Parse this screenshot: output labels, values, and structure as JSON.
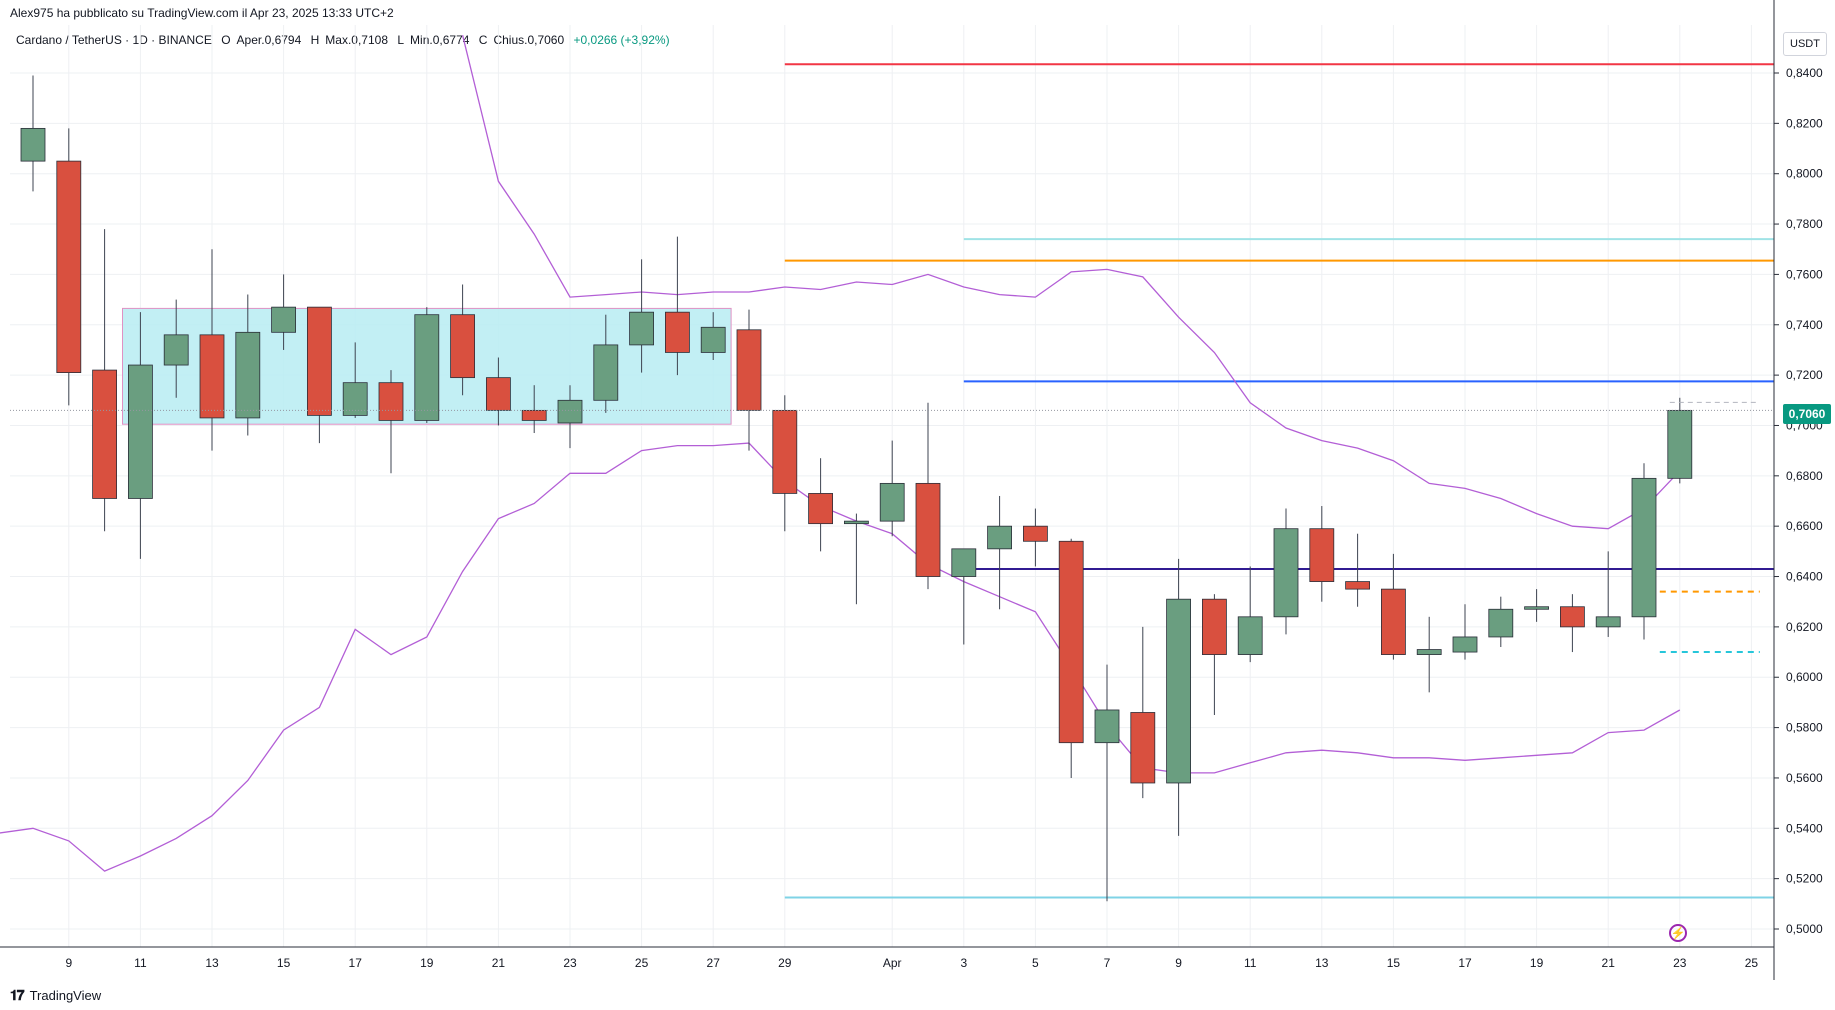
{
  "header": {
    "published_by": "Alex975 ha pubblicato su TradingView.com il Apr 23, 2025 13:33 UTC+2"
  },
  "legend": {
    "symbol": "Cardano / TetherUS · 1D · BINANCE",
    "open_label": "O",
    "open_text": "Aper.0,6794",
    "high_label": "H",
    "high_text": "Max.0,7108",
    "low_label": "L",
    "low_text": "Min.0,6774",
    "close_label": "C",
    "close_text": "Chius.0,7060",
    "change_text": "+0,0266 (+3,92%)"
  },
  "price_axis": {
    "currency": "USDT",
    "current_price_label": "0,7060"
  },
  "footer": {
    "brand": "TradingView"
  },
  "colors": {
    "up": "#6a9e80",
    "down": "#d9503f",
    "bollinger": "#b35fd6",
    "range_box": "#b7ecf2",
    "range_box_border": "#e091c4"
  },
  "chart_data": {
    "type": "candlestick",
    "ylim": [
      0.49,
      0.855
    ],
    "y_ticks": [
      "0,8400",
      "0,8200",
      "0,8000",
      "0,7800",
      "0,7600",
      "0,7400",
      "0,7200",
      "0,7000",
      "0,6800",
      "0,6600",
      "0,6400",
      "0,6200",
      "0,6000",
      "0,5800",
      "0,5600",
      "0,5400",
      "0,5200",
      "0,5000"
    ],
    "y_tick_values": [
      0.84,
      0.82,
      0.8,
      0.78,
      0.76,
      0.74,
      0.72,
      0.7,
      0.68,
      0.66,
      0.64,
      0.62,
      0.6,
      0.58,
      0.56,
      0.54,
      0.52,
      0.5
    ],
    "x_ticks": [
      "9",
      "11",
      "13",
      "15",
      "17",
      "19",
      "21",
      "23",
      "25",
      "27",
      "29",
      "Apr",
      "3",
      "5",
      "7",
      "9",
      "11",
      "13",
      "15",
      "17",
      "19",
      "21",
      "23",
      "25"
    ],
    "x_tick_days": [
      1,
      3,
      5,
      7,
      9,
      11,
      13,
      15,
      17,
      19,
      21,
      24,
      26,
      28,
      30,
      32,
      34,
      36,
      38,
      40,
      42,
      44,
      46,
      48
    ],
    "grid": true,
    "candles": [
      {
        "d": 0,
        "o": 0.805,
        "h": 0.839,
        "l": 0.793,
        "c": 0.818
      },
      {
        "d": 1,
        "o": 0.805,
        "h": 0.818,
        "l": 0.708,
        "c": 0.721
      },
      {
        "d": 2,
        "o": 0.722,
        "h": 0.778,
        "l": 0.658,
        "c": 0.671
      },
      {
        "d": 3,
        "o": 0.671,
        "h": 0.745,
        "l": 0.647,
        "c": 0.724
      },
      {
        "d": 4,
        "o": 0.724,
        "h": 0.75,
        "l": 0.711,
        "c": 0.736
      },
      {
        "d": 5,
        "o": 0.736,
        "h": 0.77,
        "l": 0.69,
        "c": 0.703
      },
      {
        "d": 6,
        "o": 0.703,
        "h": 0.752,
        "l": 0.696,
        "c": 0.737
      },
      {
        "d": 7,
        "o": 0.737,
        "h": 0.76,
        "l": 0.73,
        "c": 0.747
      },
      {
        "d": 8,
        "o": 0.747,
        "h": 0.747,
        "l": 0.693,
        "c": 0.704
      },
      {
        "d": 9,
        "o": 0.704,
        "h": 0.733,
        "l": 0.703,
        "c": 0.717
      },
      {
        "d": 10,
        "o": 0.717,
        "h": 0.722,
        "l": 0.681,
        "c": 0.702
      },
      {
        "d": 11,
        "o": 0.702,
        "h": 0.747,
        "l": 0.701,
        "c": 0.744
      },
      {
        "d": 12,
        "o": 0.744,
        "h": 0.756,
        "l": 0.712,
        "c": 0.719
      },
      {
        "d": 13,
        "o": 0.719,
        "h": 0.727,
        "l": 0.7,
        "c": 0.706
      },
      {
        "d": 14,
        "o": 0.706,
        "h": 0.716,
        "l": 0.697,
        "c": 0.702
      },
      {
        "d": 15,
        "o": 0.701,
        "h": 0.716,
        "l": 0.691,
        "c": 0.71
      },
      {
        "d": 16,
        "o": 0.71,
        "h": 0.744,
        "l": 0.705,
        "c": 0.732
      },
      {
        "d": 17,
        "o": 0.732,
        "h": 0.766,
        "l": 0.721,
        "c": 0.745
      },
      {
        "d": 18,
        "o": 0.745,
        "h": 0.775,
        "l": 0.72,
        "c": 0.729
      },
      {
        "d": 19,
        "o": 0.729,
        "h": 0.745,
        "l": 0.726,
        "c": 0.739
      },
      {
        "d": 20,
        "o": 0.738,
        "h": 0.746,
        "l": 0.69,
        "c": 0.706
      },
      {
        "d": 21,
        "o": 0.706,
        "h": 0.712,
        "l": 0.658,
        "c": 0.673
      },
      {
        "d": 22,
        "o": 0.673,
        "h": 0.687,
        "l": 0.65,
        "c": 0.661
      },
      {
        "d": 23,
        "o": 0.661,
        "h": 0.665,
        "l": 0.629,
        "c": 0.662
      },
      {
        "d": 24,
        "o": 0.662,
        "h": 0.694,
        "l": 0.656,
        "c": 0.677
      },
      {
        "d": 25,
        "o": 0.677,
        "h": 0.709,
        "l": 0.635,
        "c": 0.64
      },
      {
        "d": 26,
        "o": 0.64,
        "h": 0.648,
        "l": 0.613,
        "c": 0.651
      },
      {
        "d": 27,
        "o": 0.651,
        "h": 0.672,
        "l": 0.627,
        "c": 0.66
      },
      {
        "d": 28,
        "o": 0.66,
        "h": 0.667,
        "l": 0.644,
        "c": 0.654
      },
      {
        "d": 29,
        "o": 0.654,
        "h": 0.655,
        "l": 0.56,
        "c": 0.574
      },
      {
        "d": 30,
        "o": 0.574,
        "h": 0.605,
        "l": 0.511,
        "c": 0.587
      },
      {
        "d": 31,
        "o": 0.586,
        "h": 0.62,
        "l": 0.552,
        "c": 0.558
      },
      {
        "d": 32,
        "o": 0.558,
        "h": 0.647,
        "l": 0.537,
        "c": 0.631
      },
      {
        "d": 33,
        "o": 0.631,
        "h": 0.633,
        "l": 0.585,
        "c": 0.609
      },
      {
        "d": 34,
        "o": 0.609,
        "h": 0.644,
        "l": 0.606,
        "c": 0.624
      },
      {
        "d": 35,
        "o": 0.624,
        "h": 0.667,
        "l": 0.617,
        "c": 0.659
      },
      {
        "d": 36,
        "o": 0.659,
        "h": 0.668,
        "l": 0.63,
        "c": 0.638
      },
      {
        "d": 37,
        "o": 0.638,
        "h": 0.657,
        "l": 0.628,
        "c": 0.635
      },
      {
        "d": 38,
        "o": 0.635,
        "h": 0.649,
        "l": 0.607,
        "c": 0.609
      },
      {
        "d": 39,
        "o": 0.609,
        "h": 0.624,
        "l": 0.594,
        "c": 0.611
      },
      {
        "d": 40,
        "o": 0.61,
        "h": 0.629,
        "l": 0.607,
        "c": 0.616
      },
      {
        "d": 41,
        "o": 0.616,
        "h": 0.632,
        "l": 0.612,
        "c": 0.627
      },
      {
        "d": 42,
        "o": 0.627,
        "h": 0.635,
        "l": 0.622,
        "c": 0.628
      },
      {
        "d": 43,
        "o": 0.628,
        "h": 0.633,
        "l": 0.61,
        "c": 0.62
      },
      {
        "d": 44,
        "o": 0.62,
        "h": 0.65,
        "l": 0.616,
        "c": 0.624
      },
      {
        "d": 45,
        "o": 0.624,
        "h": 0.685,
        "l": 0.615,
        "c": 0.679
      },
      {
        "d": 46,
        "o": 0.679,
        "h": 0.711,
        "l": 0.677,
        "c": 0.706
      }
    ],
    "bollinger_upper": [
      {
        "d": 12,
        "y": 0.855
      },
      {
        "d": 13,
        "y": 0.797
      },
      {
        "d": 14,
        "y": 0.776
      },
      {
        "d": 15,
        "y": 0.751
      },
      {
        "d": 16,
        "y": 0.752
      },
      {
        "d": 17,
        "y": 0.753
      },
      {
        "d": 18,
        "y": 0.752
      },
      {
        "d": 19,
        "y": 0.753
      },
      {
        "d": 20,
        "y": 0.753
      },
      {
        "d": 21,
        "y": 0.755
      },
      {
        "d": 22,
        "y": 0.754
      },
      {
        "d": 23,
        "y": 0.757
      },
      {
        "d": 24,
        "y": 0.756
      },
      {
        "d": 25,
        "y": 0.76
      },
      {
        "d": 26,
        "y": 0.755
      },
      {
        "d": 27,
        "y": 0.752
      },
      {
        "d": 28,
        "y": 0.751
      },
      {
        "d": 29,
        "y": 0.761
      },
      {
        "d": 30,
        "y": 0.762
      },
      {
        "d": 31,
        "y": 0.759
      },
      {
        "d": 32,
        "y": 0.743
      },
      {
        "d": 33,
        "y": 0.729
      },
      {
        "d": 34,
        "y": 0.709
      },
      {
        "d": 35,
        "y": 0.699
      },
      {
        "d": 36,
        "y": 0.694
      },
      {
        "d": 37,
        "y": 0.691
      },
      {
        "d": 38,
        "y": 0.686
      },
      {
        "d": 39,
        "y": 0.677
      },
      {
        "d": 40,
        "y": 0.675
      },
      {
        "d": 41,
        "y": 0.671
      },
      {
        "d": 42,
        "y": 0.665
      },
      {
        "d": 43,
        "y": 0.66
      },
      {
        "d": 44,
        "y": 0.659
      },
      {
        "d": 45,
        "y": 0.667
      },
      {
        "d": 46,
        "y": 0.682
      }
    ],
    "bollinger_lower": [
      {
        "d": -1,
        "y": 0.538
      },
      {
        "d": 0,
        "y": 0.54
      },
      {
        "d": 1,
        "y": 0.535
      },
      {
        "d": 2,
        "y": 0.523
      },
      {
        "d": 3,
        "y": 0.529
      },
      {
        "d": 4,
        "y": 0.536
      },
      {
        "d": 5,
        "y": 0.545
      },
      {
        "d": 6,
        "y": 0.559
      },
      {
        "d": 7,
        "y": 0.579
      },
      {
        "d": 8,
        "y": 0.588
      },
      {
        "d": 9,
        "y": 0.619
      },
      {
        "d": 10,
        "y": 0.609
      },
      {
        "d": 11,
        "y": 0.616
      },
      {
        "d": 12,
        "y": 0.642
      },
      {
        "d": 13,
        "y": 0.663
      },
      {
        "d": 14,
        "y": 0.669
      },
      {
        "d": 15,
        "y": 0.681
      },
      {
        "d": 16,
        "y": 0.681
      },
      {
        "d": 17,
        "y": 0.69
      },
      {
        "d": 18,
        "y": 0.692
      },
      {
        "d": 19,
        "y": 0.692
      },
      {
        "d": 20,
        "y": 0.693
      },
      {
        "d": 21,
        "y": 0.678
      },
      {
        "d": 22,
        "y": 0.668
      },
      {
        "d": 23,
        "y": 0.662
      },
      {
        "d": 24,
        "y": 0.657
      },
      {
        "d": 25,
        "y": 0.645
      },
      {
        "d": 26,
        "y": 0.638
      },
      {
        "d": 27,
        "y": 0.632
      },
      {
        "d": 28,
        "y": 0.626
      },
      {
        "d": 29,
        "y": 0.604
      },
      {
        "d": 30,
        "y": 0.581
      },
      {
        "d": 31,
        "y": 0.564
      },
      {
        "d": 32,
        "y": 0.562
      },
      {
        "d": 33,
        "y": 0.562
      },
      {
        "d": 34,
        "y": 0.566
      },
      {
        "d": 35,
        "y": 0.57
      },
      {
        "d": 36,
        "y": 0.571
      },
      {
        "d": 37,
        "y": 0.57
      },
      {
        "d": 38,
        "y": 0.568
      },
      {
        "d": 39,
        "y": 0.568
      },
      {
        "d": 40,
        "y": 0.567
      },
      {
        "d": 41,
        "y": 0.568
      },
      {
        "d": 42,
        "y": 0.569
      },
      {
        "d": 43,
        "y": 0.57
      },
      {
        "d": 44,
        "y": 0.578
      },
      {
        "d": 45,
        "y": 0.579
      },
      {
        "d": 46,
        "y": 0.587
      }
    ],
    "horizontal_lines": [
      {
        "y": 0.8435,
        "from_d": 21,
        "color": "#f23645",
        "style": "solid"
      },
      {
        "y": 0.774,
        "from_d": 26,
        "color": "#9fe3e6",
        "style": "solid"
      },
      {
        "y": 0.7655,
        "from_d": 21,
        "color": "#ff9800",
        "style": "solid"
      },
      {
        "y": 0.7175,
        "from_d": 26,
        "color": "#2962ff",
        "style": "solid"
      },
      {
        "y": 0.643,
        "from_d": 26,
        "color": "#311b92",
        "style": "solid"
      },
      {
        "y": 0.5125,
        "from_d": 21,
        "color": "#7fd3e6",
        "style": "solid"
      }
    ],
    "dashed_levels": [
      {
        "y": 0.634,
        "color": "#ff9800"
      },
      {
        "y": 0.61,
        "color": "#26c6da"
      }
    ],
    "range_box": {
      "from_d": 2.5,
      "to_d": 19.5,
      "top": 0.7465,
      "bottom": 0.7005
    },
    "last_price": 0.706
  }
}
